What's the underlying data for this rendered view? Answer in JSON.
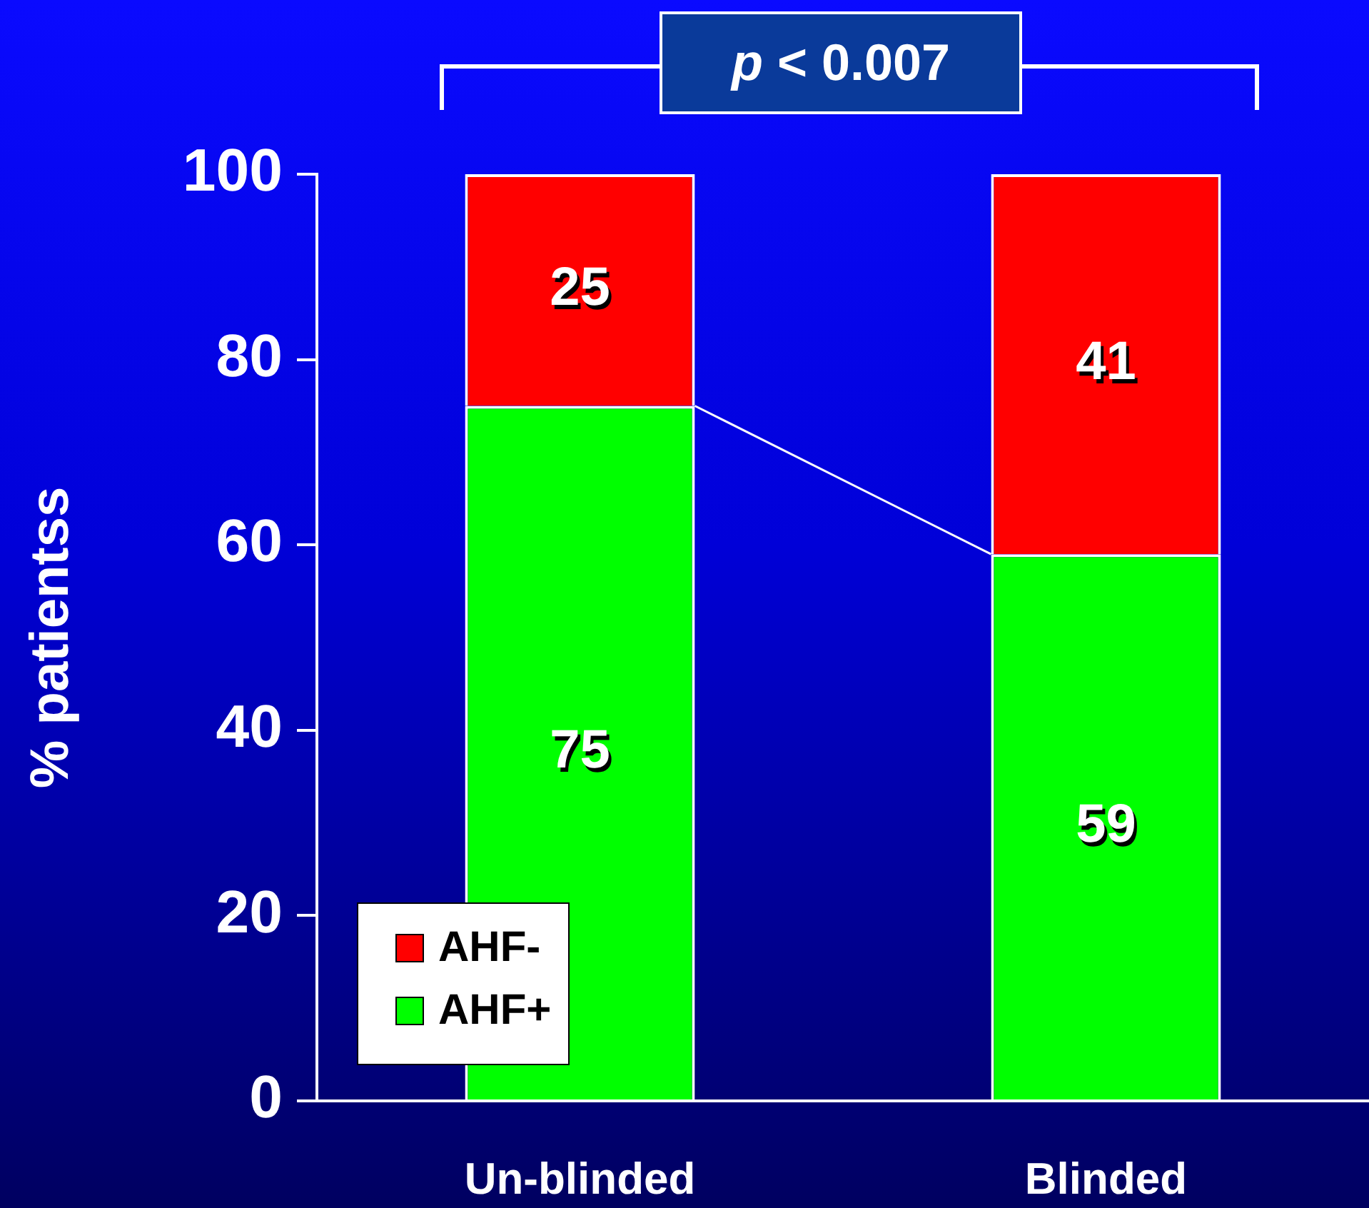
{
  "chart_data": {
    "type": "bar",
    "stacked": true,
    "ylabel": "% patientss",
    "categories": [
      "Un-blinded",
      "Blinded"
    ],
    "series": [
      {
        "name": "AHF+",
        "color": "#00ff00",
        "values": [
          75,
          59
        ]
      },
      {
        "name": "AHF-",
        "color": "#ff0000",
        "values": [
          25,
          41
        ]
      }
    ],
    "ylim": [
      0,
      100
    ],
    "yticks": [
      0,
      20,
      40,
      60,
      80,
      100
    ],
    "grid": false,
    "legend": "bottom left",
    "data_labels": true,
    "annotations": [
      "p < 0.007"
    ]
  }
}
